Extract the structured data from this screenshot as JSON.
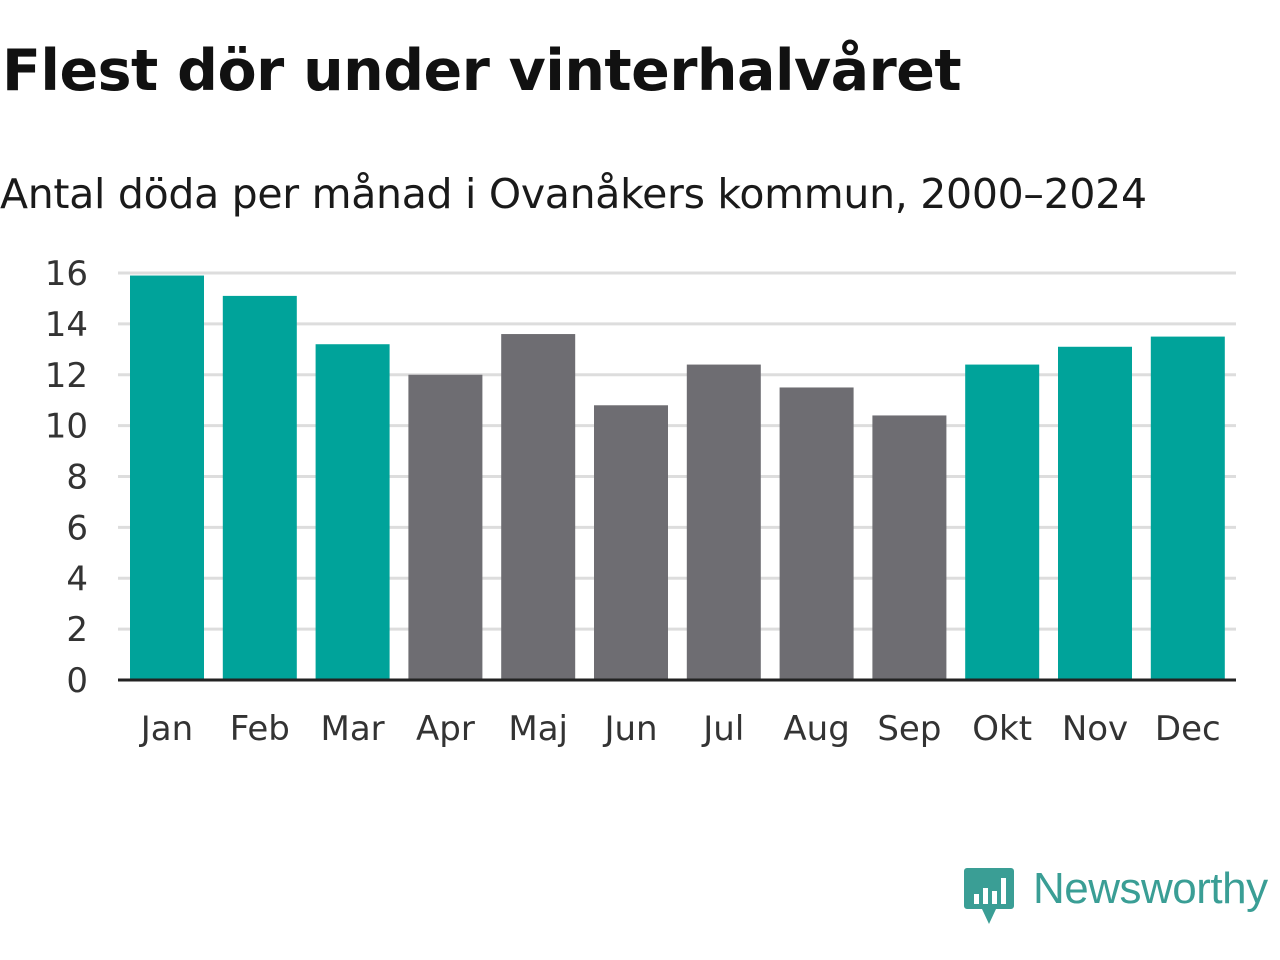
{
  "title": "Flest dör under vinterhalvåret",
  "subtitle": "Antal döda per månad i Ovanåkers kommun, 2000–2024",
  "brand": {
    "name": "Newsworthy",
    "icon": "newsworthy-logo-icon",
    "color": "#3a9e95"
  },
  "colors": {
    "highlight": "#00a39a",
    "other": "#6e6d72",
    "grid": "#dddddd",
    "axis": "#222222"
  },
  "chart_data": {
    "type": "bar",
    "title": "Flest dör under vinterhalvåret",
    "subtitle": "Antal döda per månad i Ovanåkers kommun, 2000–2024",
    "xlabel": "",
    "ylabel": "",
    "ylim": [
      0,
      16
    ],
    "yticks": [
      0,
      2,
      4,
      6,
      8,
      10,
      12,
      14,
      16
    ],
    "grid": true,
    "categories": [
      "Jan",
      "Feb",
      "Mar",
      "Apr",
      "Maj",
      "Jun",
      "Jul",
      "Aug",
      "Sep",
      "Okt",
      "Nov",
      "Dec"
    ],
    "values": [
      15.9,
      15.1,
      13.2,
      12.0,
      13.6,
      10.8,
      12.4,
      11.5,
      10.4,
      12.4,
      13.1,
      13.5
    ],
    "highlight": [
      true,
      true,
      true,
      false,
      false,
      false,
      false,
      false,
      false,
      true,
      true,
      true
    ]
  }
}
